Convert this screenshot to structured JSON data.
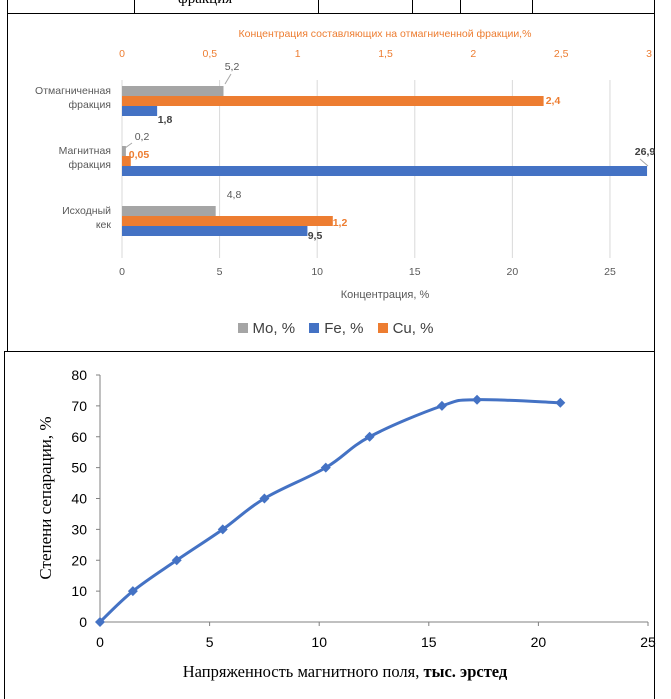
{
  "top_row": {
    "text": "фракция"
  },
  "chart_data": [
    {
      "type": "bar",
      "orientation": "horizontal",
      "title": "Концентрация составляющих на отмагниченной фракции,%",
      "xlabel": "Концентрация, %",
      "categories": [
        "Отмагниченная фракция",
        "Магнитная фракция",
        "Исходный кек"
      ],
      "category_lines": [
        [
          "Отмагниченная",
          "фракция"
        ],
        [
          "Магнитная",
          "фракция"
        ],
        [
          "Исходный",
          "кек"
        ]
      ],
      "primary_axis": {
        "range": [
          0,
          27
        ],
        "ticks": [
          "0",
          "5",
          "10",
          "15",
          "20",
          "25"
        ]
      },
      "secondary_axis": {
        "range": [
          0,
          3
        ],
        "ticks": [
          "0",
          "0,5",
          "1",
          "1,5",
          "2",
          "2,5",
          "3"
        ]
      },
      "series": [
        {
          "name": "Mo, %",
          "values": [
            5.2,
            0.2,
            4.8
          ],
          "labels": [
            "5,2",
            "0,2",
            "4,8"
          ],
          "axis": "primary",
          "color": "#A5A5A5"
        },
        {
          "name": "Cu, %",
          "values": [
            2.4,
            0.05,
            1.2
          ],
          "labels": [
            "2,4",
            "0,05",
            "1,2"
          ],
          "axis": "secondary",
          "color": "#ED7D31"
        },
        {
          "name": "Fe, %",
          "values": [
            1.8,
            26.9,
            9.5
          ],
          "labels": [
            "1,8",
            "26,9",
            "9,5"
          ],
          "axis": "primary",
          "color": "#4472C4"
        }
      ],
      "legend": [
        {
          "name": "Mo, %",
          "color": "#A5A5A5"
        },
        {
          "name": "Fe, %",
          "color": "#4472C4"
        },
        {
          "name": "Cu, %",
          "color": "#ED7D31"
        }
      ],
      "legend_position": "bottom",
      "grid": "vertical"
    },
    {
      "type": "line",
      "xlabel_plain": "Напряженность магнитного поля, ",
      "xlabel_bold": "тыс. эрстед",
      "ylabel": "Степени сепарации, %",
      "x": [
        0,
        1.5,
        3.5,
        5.6,
        7.5,
        10.3,
        12.3,
        15.6,
        17.2,
        21
      ],
      "y": [
        0,
        10,
        20,
        30,
        40,
        50,
        60,
        70,
        72,
        71
      ],
      "xlim": [
        0,
        25
      ],
      "ylim": [
        0,
        80
      ],
      "xticks": [
        "0",
        "5",
        "10",
        "15",
        "20",
        "25"
      ],
      "yticks": [
        "0",
        "10",
        "20",
        "30",
        "40",
        "50",
        "60",
        "70",
        "80"
      ],
      "grid": false,
      "color": "#4472C4"
    }
  ]
}
